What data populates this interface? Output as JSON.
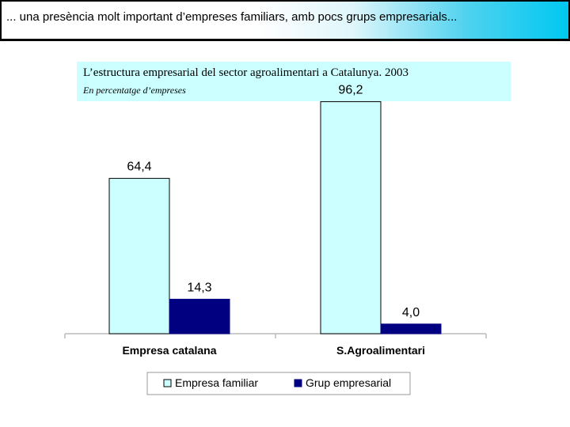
{
  "header": {
    "text": "... una presència molt important d’empreses familiars, amb pocs grups empresarials..."
  },
  "colors": {
    "empresa_familiar": "#ccffff",
    "grup_empresarial": "#000080",
    "title_box": "#ccffff"
  },
  "chart_data": {
    "type": "bar",
    "title": "L’estructura empresarial del sector agroalimentari a Catalunya. 2003",
    "subtitle": "En percentatge d’empreses",
    "categories": [
      "Empresa catalana",
      "S.Agroalimentari"
    ],
    "series": [
      {
        "name": "Empresa familiar",
        "values": [
          64.4,
          96.2
        ],
        "labels": [
          "64,4",
          "96,2"
        ]
      },
      {
        "name": "Grup empresarial",
        "values": [
          14.3,
          4.0
        ],
        "labels": [
          "14,3",
          "4,0"
        ]
      }
    ],
    "ylim": [
      0,
      100
    ],
    "grid": false,
    "legend": "bottom"
  }
}
